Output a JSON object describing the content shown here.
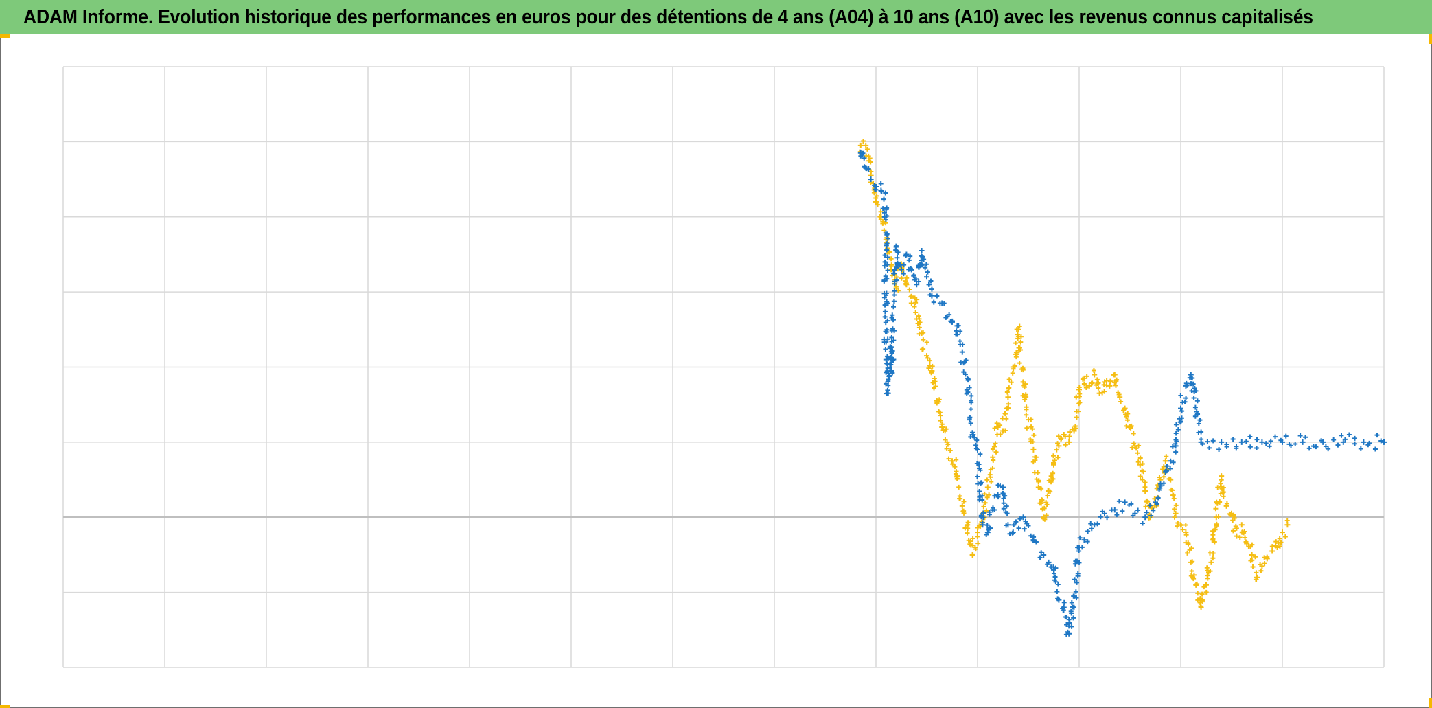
{
  "title": "ADAM Informe. Evolution historique des performances en euros pour des détentions de 4 ans (A04) à 10 ans (A10) avec les revenus connus capitalisés",
  "colors": {
    "title_bg": "#7ec97a",
    "series_a": "#1f77c4",
    "series_b": "#f5be14",
    "grid": "#d9d9d9",
    "zero_line": "#bfbfbf",
    "corner_markers": "#f5b800"
  },
  "chart_data": {
    "type": "scatter",
    "title": "ADAM Informe. Evolution historique des performances en euros pour des détentions de 4 ans (A04) à 10 ans (A10) avec les revenus connus capitalisés",
    "xlabel": "",
    "ylabel": "",
    "tick_labels_visible": false,
    "legend": "none",
    "grid": true,
    "x_grid_columns": 13,
    "xlim": [
      0,
      13
    ],
    "ylim": [
      -2,
      6
    ],
    "zero_line_y": 0,
    "marker": "plus",
    "series": [
      {
        "color": "#1f77c4",
        "points": [
          [
            7.85,
            4.85
          ],
          [
            7.9,
            4.65
          ],
          [
            7.95,
            4.5
          ],
          [
            8.0,
            4.4
          ],
          [
            8.05,
            4.35
          ],
          [
            8.1,
            4.1
          ],
          [
            8.2,
            3.6
          ],
          [
            8.25,
            3.3
          ],
          [
            8.3,
            3.5
          ],
          [
            8.35,
            3.3
          ],
          [
            8.4,
            3.1
          ],
          [
            8.45,
            3.55
          ],
          [
            8.5,
            3.2
          ],
          [
            8.55,
            2.95
          ],
          [
            8.65,
            2.85
          ],
          [
            8.75,
            2.6
          ],
          [
            8.8,
            2.55
          ],
          [
            8.85,
            2.2
          ],
          [
            8.9,
            1.85
          ],
          [
            8.95,
            1.1
          ],
          [
            9.0,
            0.9
          ],
          [
            9.05,
            -0.1
          ],
          [
            9.1,
            -0.2
          ],
          [
            9.15,
            0.1
          ],
          [
            9.2,
            0.3
          ],
          [
            9.25,
            0.4
          ],
          [
            9.3,
            -0.1
          ],
          [
            9.35,
            -0.2
          ],
          [
            9.45,
            0.0
          ],
          [
            9.55,
            -0.3
          ],
          [
            9.65,
            -0.5
          ],
          [
            9.7,
            -0.6
          ],
          [
            9.75,
            -0.7
          ],
          [
            9.8,
            -1.1
          ],
          [
            9.85,
            -1.2
          ],
          [
            9.9,
            -1.55
          ],
          [
            9.95,
            -1.05
          ],
          [
            10.0,
            -0.4
          ],
          [
            10.05,
            -0.3
          ],
          [
            10.15,
            -0.1
          ],
          [
            10.25,
            0.05
          ],
          [
            10.35,
            0.1
          ],
          [
            10.45,
            0.2
          ],
          [
            10.55,
            0.05
          ],
          [
            10.65,
            0.0
          ],
          [
            10.75,
            0.2
          ],
          [
            10.85,
            0.6
          ],
          [
            10.95,
            0.95
          ],
          [
            11.0,
            1.45
          ],
          [
            11.05,
            1.75
          ],
          [
            11.1,
            1.9
          ],
          [
            11.2,
            1.0
          ],
          [
            11.4,
            1.0
          ],
          [
            11.6,
            1.0
          ],
          [
            11.8,
            1.0
          ],
          [
            12.0,
            1.0
          ],
          [
            12.2,
            1.0
          ],
          [
            12.4,
            1.0
          ],
          [
            12.6,
            1.0
          ],
          [
            12.8,
            1.0
          ],
          [
            13.0,
            1.0
          ],
          [
            8.1,
            2.1
          ],
          [
            8.15,
            1.95
          ],
          [
            8.12,
            1.65
          ],
          [
            8.14,
            2.25
          ]
        ]
      },
      {
        "color": "#f5be14",
        "points": [
          [
            7.85,
            4.95
          ],
          [
            7.9,
            4.95
          ],
          [
            7.95,
            4.55
          ],
          [
            8.0,
            4.2
          ],
          [
            8.05,
            4.0
          ],
          [
            8.1,
            3.7
          ],
          [
            8.15,
            3.3
          ],
          [
            8.2,
            3.05
          ],
          [
            8.25,
            3.35
          ],
          [
            8.3,
            3.1
          ],
          [
            8.35,
            2.85
          ],
          [
            8.4,
            2.9
          ],
          [
            8.45,
            2.45
          ],
          [
            8.5,
            2.15
          ],
          [
            8.55,
            1.95
          ],
          [
            8.6,
            1.55
          ],
          [
            8.65,
            1.2
          ],
          [
            8.7,
            1.0
          ],
          [
            8.75,
            0.75
          ],
          [
            8.8,
            0.55
          ],
          [
            8.85,
            0.15
          ],
          [
            8.9,
            -0.1
          ],
          [
            8.95,
            -0.5
          ],
          [
            9.0,
            -0.2
          ],
          [
            9.05,
            0.05
          ],
          [
            9.1,
            0.4
          ],
          [
            9.15,
            0.8
          ],
          [
            9.2,
            1.2
          ],
          [
            9.25,
            1.15
          ],
          [
            9.3,
            1.6
          ],
          [
            9.35,
            2.0
          ],
          [
            9.4,
            2.5
          ],
          [
            9.45,
            1.8
          ],
          [
            9.5,
            1.3
          ],
          [
            9.55,
            0.9
          ],
          [
            9.6,
            0.4
          ],
          [
            9.65,
            0.0
          ],
          [
            9.7,
            0.35
          ],
          [
            9.75,
            0.7
          ],
          [
            9.8,
            0.95
          ],
          [
            9.85,
            1.1
          ],
          [
            9.9,
            1.0
          ],
          [
            9.95,
            1.15
          ],
          [
            10.0,
            1.7
          ],
          [
            10.05,
            1.85
          ],
          [
            10.1,
            1.75
          ],
          [
            10.15,
            1.9
          ],
          [
            10.2,
            1.65
          ],
          [
            10.25,
            1.8
          ],
          [
            10.3,
            1.75
          ],
          [
            10.35,
            1.9
          ],
          [
            10.4,
            1.6
          ],
          [
            10.45,
            1.45
          ],
          [
            10.5,
            1.2
          ],
          [
            10.55,
            0.95
          ],
          [
            10.6,
            0.7
          ],
          [
            10.65,
            0.35
          ],
          [
            10.7,
            0.0
          ],
          [
            10.75,
            0.2
          ],
          [
            10.8,
            0.5
          ],
          [
            10.85,
            0.75
          ],
          [
            10.9,
            0.5
          ],
          [
            10.95,
            0.05
          ],
          [
            11.0,
            -0.1
          ],
          [
            11.05,
            -0.2
          ],
          [
            11.1,
            -0.6
          ],
          [
            11.15,
            -0.9
          ],
          [
            11.2,
            -1.2
          ],
          [
            11.25,
            -0.9
          ],
          [
            11.3,
            -0.6
          ],
          [
            11.35,
            0.0
          ],
          [
            11.4,
            0.55
          ],
          [
            11.45,
            0.15
          ],
          [
            11.5,
            0.05
          ],
          [
            11.55,
            -0.25
          ],
          [
            11.6,
            -0.1
          ],
          [
            11.65,
            -0.35
          ],
          [
            11.7,
            -0.5
          ],
          [
            11.75,
            -0.8
          ],
          [
            11.8,
            -0.65
          ],
          [
            11.85,
            -0.55
          ],
          [
            11.9,
            -0.45
          ],
          [
            11.95,
            -0.4
          ],
          [
            12.0,
            -0.2
          ],
          [
            12.05,
            -0.1
          ]
        ]
      }
    ]
  }
}
